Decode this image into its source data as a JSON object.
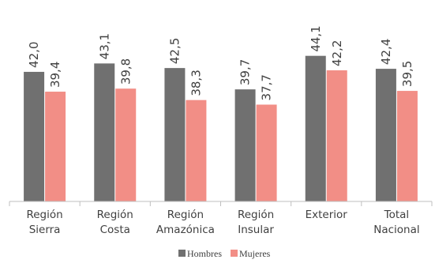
{
  "chart_data": {
    "type": "bar",
    "categories": [
      [
        "Región",
        "Sierra"
      ],
      [
        "Región",
        "Costa"
      ],
      [
        "Región",
        "Amazónica"
      ],
      [
        "Región",
        "Insular"
      ],
      [
        "Exterior"
      ],
      [
        "Total",
        "Nacional"
      ]
    ],
    "series": [
      {
        "name": "Hombres",
        "color": "#707070",
        "values": [
          42.0,
          43.1,
          42.5,
          39.7,
          44.1,
          42.4
        ],
        "labels": [
          "42,0",
          "43,1",
          "42,5",
          "39,7",
          "44,1",
          "42,4"
        ]
      },
      {
        "name": "Mujeres",
        "color": "#F28E86",
        "values": [
          39.4,
          39.8,
          38.3,
          37.7,
          42.2,
          39.5
        ],
        "labels": [
          "39,4",
          "39,8",
          "38,3",
          "37,7",
          "42,2",
          "39,5"
        ]
      }
    ],
    "ylim": [
      25,
      45
    ],
    "legend_position": "bottom",
    "grid": false,
    "data_labels": "rotated-vertical"
  }
}
